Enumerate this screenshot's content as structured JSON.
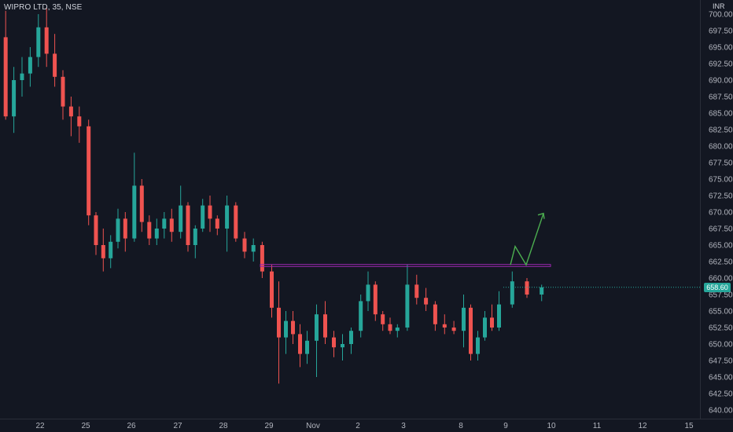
{
  "symbol_title": "WIPRO LTD, 35, NSE",
  "currency": "INR",
  "colors": {
    "background": "#131722",
    "up_candle": "#26a69a",
    "down_candle": "#ef5350",
    "resistance_line": "#9c27b0",
    "projection_arrow": "#4caf50",
    "axis_text": "#b2b5be"
  },
  "chart_data": {
    "type": "candlestick",
    "title": "WIPRO LTD, 35, NSE",
    "y_unit": "INR",
    "ylim": [
      639.5,
      701.5
    ],
    "y_ticks": [
      "640.00",
      "642.50",
      "645.00",
      "647.50",
      "650.00",
      "652.50",
      "655.00",
      "657.50",
      "660.00",
      "662.50",
      "665.00",
      "667.50",
      "670.00",
      "672.50",
      "675.00",
      "677.50",
      "680.00",
      "682.50",
      "685.00",
      "687.50",
      "690.00",
      "692.50",
      "695.00",
      "697.50",
      "700.00"
    ],
    "x_ticks": [
      "22",
      "25",
      "26",
      "27",
      "28",
      "29",
      "Nov",
      "2",
      "3",
      "8",
      "9",
      "10",
      "11",
      "12",
      "15"
    ],
    "last_price": 658.6,
    "last_price_label": "658.60",
    "resistance_level": 661.9,
    "projection_path": [
      {
        "x": "9",
        "y": 662.0
      },
      {
        "x": "9.2",
        "y": 664.8
      },
      {
        "x": "9.45",
        "y": 662.0
      },
      {
        "x": "9.8",
        "y": 669.8
      }
    ],
    "candles": [
      {
        "session": "22",
        "o": 696.5,
        "h": 700.5,
        "l": 684.0,
        "c": 684.5
      },
      {
        "session": "22",
        "o": 684.5,
        "h": 692.0,
        "l": 682.0,
        "c": 690.0
      },
      {
        "session": "22",
        "o": 690.0,
        "h": 693.5,
        "l": 687.5,
        "c": 691.0
      },
      {
        "session": "22",
        "o": 691.0,
        "h": 695.0,
        "l": 689.0,
        "c": 693.5
      },
      {
        "session": "22",
        "o": 693.5,
        "h": 700.0,
        "l": 692.0,
        "c": 698.0
      },
      {
        "session": "22",
        "o": 698.0,
        "h": 701.0,
        "l": 692.0,
        "c": 694.0
      },
      {
        "session": "22",
        "o": 694.0,
        "h": 697.0,
        "l": 689.0,
        "c": 690.5
      },
      {
        "session": "22",
        "o": 690.5,
        "h": 691.5,
        "l": 684.0,
        "c": 686.0
      },
      {
        "session": "22",
        "o": 686.0,
        "h": 687.5,
        "l": 681.5,
        "c": 684.5
      },
      {
        "session": "22",
        "o": 684.5,
        "h": 686.0,
        "l": 680.5,
        "c": 683.0
      },
      {
        "session": "25",
        "o": 683.0,
        "h": 684.0,
        "l": 668.0,
        "c": 669.5
      },
      {
        "session": "25",
        "o": 669.5,
        "h": 670.0,
        "l": 663.5,
        "c": 665.0
      },
      {
        "session": "25",
        "o": 665.0,
        "h": 667.5,
        "l": 661.0,
        "c": 663.0
      },
      {
        "session": "25",
        "o": 663.0,
        "h": 666.5,
        "l": 661.5,
        "c": 665.5
      },
      {
        "session": "25",
        "o": 665.5,
        "h": 670.5,
        "l": 664.5,
        "c": 669.0
      },
      {
        "session": "25",
        "o": 669.0,
        "h": 670.0,
        "l": 664.0,
        "c": 666.0
      },
      {
        "session": "26",
        "o": 666.0,
        "h": 679.0,
        "l": 665.5,
        "c": 674.0
      },
      {
        "session": "26",
        "o": 674.0,
        "h": 675.0,
        "l": 667.0,
        "c": 668.5
      },
      {
        "session": "26",
        "o": 668.5,
        "h": 669.5,
        "l": 665.0,
        "c": 666.0
      },
      {
        "session": "26",
        "o": 666.0,
        "h": 669.0,
        "l": 665.0,
        "c": 667.5
      },
      {
        "session": "26",
        "o": 667.5,
        "h": 670.0,
        "l": 666.0,
        "c": 669.0
      },
      {
        "session": "26",
        "o": 669.0,
        "h": 670.5,
        "l": 665.5,
        "c": 667.0
      },
      {
        "session": "27",
        "o": 667.0,
        "h": 674.0,
        "l": 666.0,
        "c": 671.0
      },
      {
        "session": "27",
        "o": 671.0,
        "h": 671.5,
        "l": 664.0,
        "c": 665.0
      },
      {
        "session": "27",
        "o": 665.0,
        "h": 668.0,
        "l": 663.0,
        "c": 667.5
      },
      {
        "session": "27",
        "o": 667.5,
        "h": 672.0,
        "l": 667.0,
        "c": 671.0
      },
      {
        "session": "27",
        "o": 671.0,
        "h": 672.5,
        "l": 667.0,
        "c": 669.0
      },
      {
        "session": "27",
        "o": 669.0,
        "h": 669.5,
        "l": 666.5,
        "c": 667.5
      },
      {
        "session": "28",
        "o": 667.5,
        "h": 672.5,
        "l": 664.0,
        "c": 671.0
      },
      {
        "session": "28",
        "o": 671.0,
        "h": 671.5,
        "l": 665.5,
        "c": 666.0
      },
      {
        "session": "28",
        "o": 666.0,
        "h": 667.0,
        "l": 663.0,
        "c": 664.0
      },
      {
        "session": "28",
        "o": 664.0,
        "h": 666.0,
        "l": 662.5,
        "c": 665.0
      },
      {
        "session": "28",
        "o": 665.0,
        "h": 665.5,
        "l": 660.0,
        "c": 661.0
      },
      {
        "session": "29",
        "o": 661.0,
        "h": 662.0,
        "l": 654.0,
        "c": 655.5
      },
      {
        "session": "29",
        "o": 655.5,
        "h": 659.5,
        "l": 644.0,
        "c": 651.0
      },
      {
        "session": "29",
        "o": 651.0,
        "h": 655.0,
        "l": 648.5,
        "c": 653.5
      },
      {
        "session": "29",
        "o": 653.5,
        "h": 655.0,
        "l": 650.0,
        "c": 651.5
      },
      {
        "session": "29",
        "o": 651.5,
        "h": 653.0,
        "l": 646.5,
        "c": 648.5
      },
      {
        "session": "29",
        "o": 648.5,
        "h": 652.0,
        "l": 647.0,
        "c": 650.5
      },
      {
        "session": "Nov",
        "o": 650.5,
        "h": 656.0,
        "l": 645.0,
        "c": 654.5
      },
      {
        "session": "Nov",
        "o": 654.5,
        "h": 656.5,
        "l": 650.0,
        "c": 651.0
      },
      {
        "session": "Nov",
        "o": 651.0,
        "h": 652.0,
        "l": 648.0,
        "c": 649.5
      },
      {
        "session": "Nov",
        "o": 649.5,
        "h": 651.5,
        "l": 647.5,
        "c": 650.0
      },
      {
        "session": "Nov",
        "o": 650.0,
        "h": 652.5,
        "l": 648.5,
        "c": 652.0
      },
      {
        "session": "2",
        "o": 652.0,
        "h": 657.5,
        "l": 651.0,
        "c": 656.5
      },
      {
        "session": "2",
        "o": 656.5,
        "h": 661.0,
        "l": 655.0,
        "c": 659.0
      },
      {
        "session": "2",
        "o": 659.0,
        "h": 659.5,
        "l": 653.5,
        "c": 654.5
      },
      {
        "session": "2",
        "o": 654.5,
        "h": 655.0,
        "l": 652.0,
        "c": 653.0
      },
      {
        "session": "2",
        "o": 653.0,
        "h": 654.0,
        "l": 651.5,
        "c": 652.0
      },
      {
        "session": "2",
        "o": 652.0,
        "h": 653.0,
        "l": 651.0,
        "c": 652.5
      },
      {
        "session": "3",
        "o": 652.5,
        "h": 662.0,
        "l": 652.0,
        "c": 659.0
      },
      {
        "session": "3",
        "o": 659.0,
        "h": 660.5,
        "l": 656.0,
        "c": 657.0
      },
      {
        "session": "3",
        "o": 657.0,
        "h": 658.5,
        "l": 655.0,
        "c": 656.0
      },
      {
        "session": "3",
        "o": 656.0,
        "h": 656.5,
        "l": 652.0,
        "c": 653.0
      },
      {
        "session": "3",
        "o": 653.0,
        "h": 654.5,
        "l": 651.5,
        "c": 652.5
      },
      {
        "session": "3",
        "o": 652.5,
        "h": 653.5,
        "l": 651.5,
        "c": 652.0
      },
      {
        "session": "8",
        "o": 652.0,
        "h": 657.5,
        "l": 649.5,
        "c": 655.5
      },
      {
        "session": "8",
        "o": 655.5,
        "h": 656.0,
        "l": 647.5,
        "c": 648.5
      },
      {
        "session": "8",
        "o": 648.5,
        "h": 652.0,
        "l": 647.5,
        "c": 651.0
      },
      {
        "session": "8",
        "o": 651.0,
        "h": 655.0,
        "l": 650.5,
        "c": 654.0
      },
      {
        "session": "8",
        "o": 654.0,
        "h": 656.0,
        "l": 652.0,
        "c": 652.5
      },
      {
        "session": "8",
        "o": 652.5,
        "h": 658.0,
        "l": 652.0,
        "c": 656.0
      },
      {
        "session": "9",
        "o": 656.0,
        "h": 661.0,
        "l": 655.5,
        "c": 659.5
      },
      {
        "session": "9",
        "o": 659.5,
        "h": 660.0,
        "l": 657.0,
        "c": 657.5
      },
      {
        "session": "9",
        "o": 657.5,
        "h": 659.0,
        "l": 656.5,
        "c": 658.6
      }
    ]
  }
}
